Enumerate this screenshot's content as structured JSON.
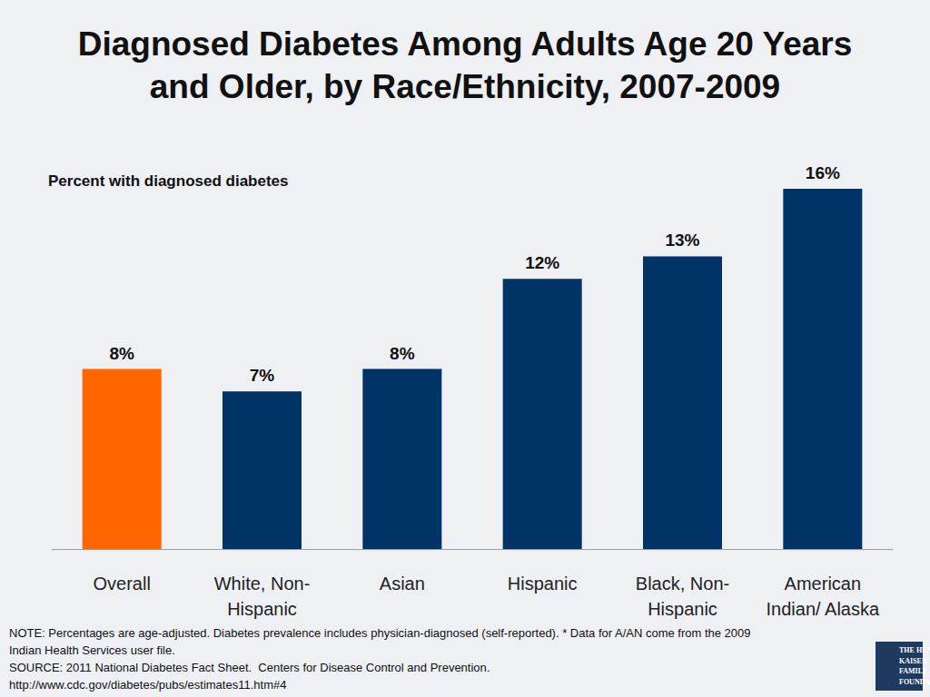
{
  "chart_data": {
    "type": "bar",
    "title": "Diagnosed Diabetes Among Adults Age 20 Years\nand Older, by Race/Ethnicity, 2007-2009",
    "ylabel": "Percent with diagnosed diabetes",
    "categories": [
      "Overall",
      "White, Non-\nHispanic",
      "Asian",
      "Hispanic",
      "Black, Non-\nHispanic",
      "American\nIndian/ Alaska"
    ],
    "values": [
      8,
      7,
      8,
      12,
      13,
      16
    ],
    "value_labels": [
      "8%",
      "7%",
      "8%",
      "12%",
      "13%",
      "16%"
    ],
    "colors": [
      "#ff6600",
      "#003366",
      "#003366",
      "#003366",
      "#003366",
      "#003366"
    ],
    "ylim": [
      0,
      16
    ],
    "grid": false,
    "data_labels": true,
    "tick_labels": "x",
    "notes": [
      "NOTE: Percentages are age-adjusted. Diabetes prevalence includes physician-diagnosed (self-reported). * Data for A/AN come from the 2009",
      "Indian Health Services user file.",
      "SOURCE: 2011 National Diabetes Fact Sheet.  Centers for Disease Control and Prevention.",
      "http://www.cdc.gov/diabetes/pubs/estimates11.htm#4"
    ],
    "logo": "THE HENRY J.\nKAISER\nFAMILY\nFOUNDATION"
  }
}
